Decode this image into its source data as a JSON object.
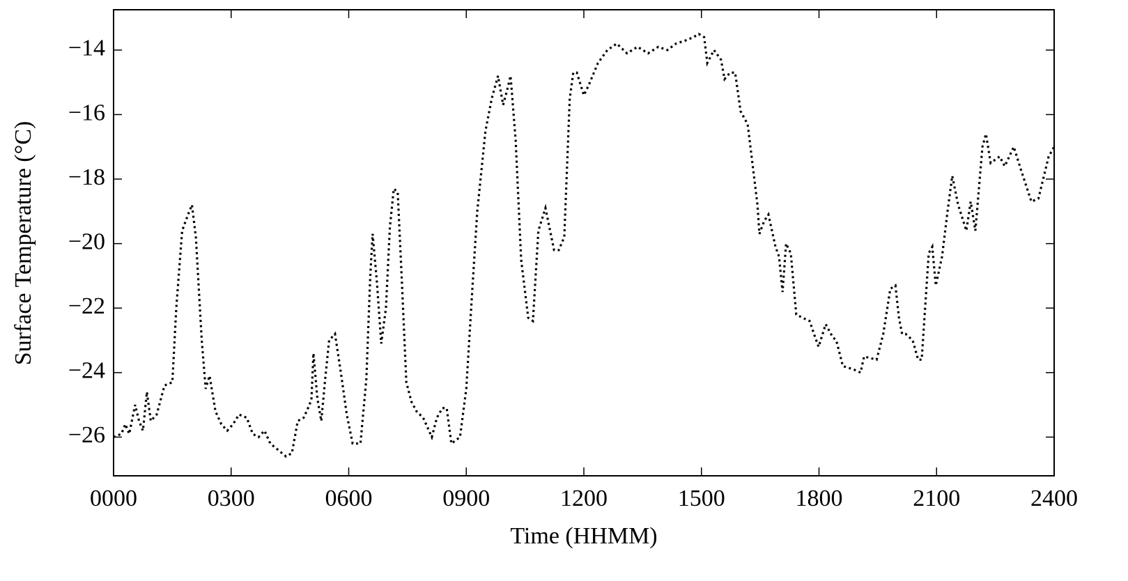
{
  "chart_data": {
    "type": "line",
    "x_label": "Time (HHMM)",
    "y_label": "Surface Temperature (°C)",
    "xlim": [
      0,
      24
    ],
    "ylim": [
      -27.2,
      -12.75
    ],
    "xticks": [
      {
        "value": 0,
        "label": "0000"
      },
      {
        "value": 3,
        "label": "0300"
      },
      {
        "value": 6,
        "label": "0600"
      },
      {
        "value": 9,
        "label": "0900"
      },
      {
        "value": 12,
        "label": "1200"
      },
      {
        "value": 15,
        "label": "1500"
      },
      {
        "value": 18,
        "label": "1800"
      },
      {
        "value": 21,
        "label": "2100"
      },
      {
        "value": 24,
        "label": "2400"
      }
    ],
    "yticks": [
      {
        "value": -26,
        "label": "−26"
      },
      {
        "value": -24,
        "label": "−24"
      },
      {
        "value": -22,
        "label": "−22"
      },
      {
        "value": -20,
        "label": "−20"
      },
      {
        "value": -18,
        "label": "−18"
      },
      {
        "value": -16,
        "label": "−16"
      },
      {
        "value": -14,
        "label": "−14"
      }
    ],
    "grid": false,
    "x": [
      0.0,
      0.2,
      0.3,
      0.4,
      0.5,
      0.55,
      0.65,
      0.75,
      0.85,
      0.95,
      1.1,
      1.3,
      1.5,
      1.6,
      1.75,
      1.9,
      2.0,
      2.1,
      2.25,
      2.35,
      2.45,
      2.6,
      2.75,
      2.9,
      3.05,
      3.2,
      3.4,
      3.55,
      3.7,
      3.85,
      4.0,
      4.2,
      4.4,
      4.55,
      4.7,
      4.85,
      5.0,
      5.05,
      5.1,
      5.2,
      5.3,
      5.4,
      5.5,
      5.65,
      5.8,
      5.95,
      6.1,
      6.3,
      6.45,
      6.55,
      6.61,
      6.72,
      6.83,
      6.95,
      7.05,
      7.15,
      7.25,
      7.35,
      7.47,
      7.6,
      7.73,
      7.9,
      8.12,
      8.25,
      8.39,
      8.5,
      8.62,
      8.84,
      9.0,
      9.15,
      9.28,
      9.49,
      9.65,
      9.81,
      9.94,
      10.03,
      10.13,
      10.26,
      10.4,
      10.58,
      10.7,
      10.84,
      11.02,
      11.24,
      11.36,
      11.5,
      11.64,
      11.73,
      11.82,
      12.0,
      12.12,
      12.36,
      12.6,
      12.84,
      13.1,
      13.37,
      13.64,
      13.9,
      14.13,
      14.35,
      14.6,
      14.8,
      14.93,
      15.07,
      15.15,
      15.32,
      15.5,
      15.59,
      15.73,
      15.86,
      16.0,
      16.18,
      16.3,
      16.43,
      16.48,
      16.6,
      16.71,
      16.89,
      16.98,
      17.07,
      17.16,
      17.28,
      17.42,
      17.58,
      17.76,
      17.9,
      17.99,
      18.17,
      18.35,
      18.44,
      18.61,
      18.88,
      19.06,
      19.15,
      19.47,
      19.64,
      19.82,
      19.95,
      20.04,
      20.12,
      20.21,
      20.39,
      20.53,
      20.62,
      20.8,
      20.89,
      20.98,
      21.14,
      21.28,
      21.4,
      21.55,
      21.76,
      21.87,
      21.99,
      22.17,
      22.26,
      22.38,
      22.61,
      22.74,
      22.97,
      23.15,
      23.42,
      23.6,
      23.86,
      24.0
    ],
    "series": [
      {
        "name": "Surface Temperature",
        "color": "#000000",
        "values": [
          -26.0,
          -25.9,
          -25.6,
          -25.9,
          -25.3,
          -25.0,
          -25.5,
          -25.8,
          -24.6,
          -25.5,
          -25.3,
          -24.4,
          -24.3,
          -22.0,
          -19.6,
          -19.1,
          -18.8,
          -19.8,
          -23.0,
          -24.5,
          -24.1,
          -25.2,
          -25.6,
          -25.8,
          -25.6,
          -25.3,
          -25.4,
          -25.9,
          -26.0,
          -25.8,
          -26.2,
          -26.4,
          -26.6,
          -26.5,
          -25.5,
          -25.4,
          -25.0,
          -24.8,
          -23.4,
          -24.8,
          -25.5,
          -24.2,
          -23.0,
          -22.8,
          -24.0,
          -25.3,
          -26.2,
          -26.2,
          -24.2,
          -21.0,
          -19.7,
          -21.2,
          -23.1,
          -22.0,
          -19.5,
          -18.3,
          -18.4,
          -21.0,
          -24.3,
          -24.9,
          -25.2,
          -25.4,
          -26.0,
          -25.4,
          -25.1,
          -25.1,
          -26.2,
          -26.0,
          -24.5,
          -21.5,
          -19.0,
          -16.5,
          -15.5,
          -14.8,
          -15.7,
          -15.3,
          -14.8,
          -16.8,
          -20.5,
          -22.3,
          -22.4,
          -19.6,
          -18.9,
          -20.2,
          -20.2,
          -19.8,
          -15.5,
          -14.7,
          -14.7,
          -15.4,
          -15.1,
          -14.4,
          -14.0,
          -13.8,
          -14.1,
          -13.9,
          -14.1,
          -13.9,
          -14.0,
          -13.8,
          -13.7,
          -13.6,
          -13.5,
          -13.6,
          -14.4,
          -14.0,
          -14.3,
          -14.9,
          -14.7,
          -14.7,
          -15.9,
          -16.3,
          -17.5,
          -18.8,
          -19.7,
          -19.3,
          -19.1,
          -20.1,
          -20.4,
          -21.5,
          -20.0,
          -20.3,
          -22.2,
          -22.3,
          -22.4,
          -22.9,
          -23.2,
          -22.5,
          -22.9,
          -23.0,
          -23.8,
          -23.9,
          -24.0,
          -23.5,
          -23.6,
          -22.8,
          -21.4,
          -21.3,
          -22.3,
          -22.8,
          -22.8,
          -23.0,
          -23.6,
          -23.6,
          -20.3,
          -20.1,
          -21.3,
          -20.4,
          -19.0,
          -17.9,
          -18.8,
          -19.6,
          -18.7,
          -19.6,
          -17.0,
          -16.6,
          -17.5,
          -17.3,
          -17.6,
          -17.0,
          -17.7,
          -18.7,
          -18.6,
          -17.3,
          -17.0
        ]
      }
    ]
  }
}
